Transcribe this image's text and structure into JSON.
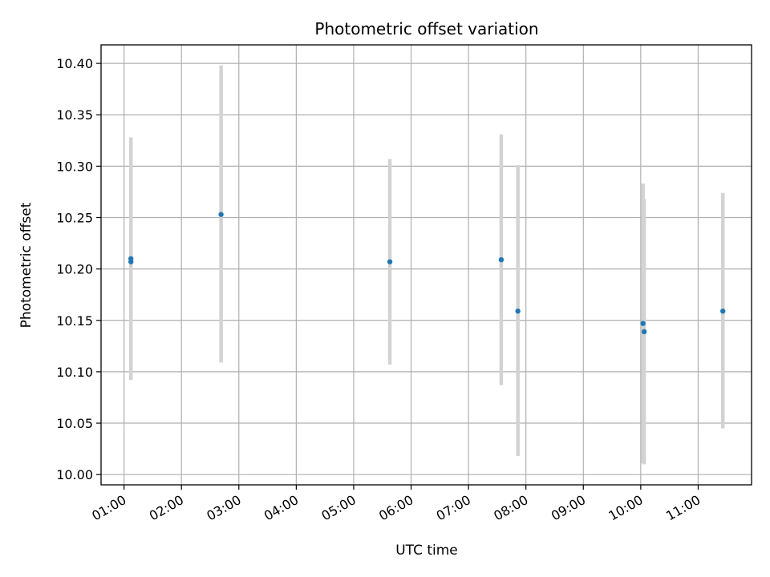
{
  "chart_data": {
    "type": "scatter",
    "title": "Photometric offset variation",
    "xlabel": "UTC time",
    "ylabel": "Photometric offset",
    "x_tick_labels": [
      "01:00",
      "02:00",
      "03:00",
      "04:00",
      "05:00",
      "06:00",
      "07:00",
      "08:00",
      "09:00",
      "10:00",
      "11:00"
    ],
    "x_ticks_hours": [
      1,
      2,
      3,
      4,
      5,
      6,
      7,
      8,
      9,
      10,
      11
    ],
    "xlim_hours": [
      0.6,
      11.93
    ],
    "y_ticks": [
      10.0,
      10.05,
      10.1,
      10.15,
      10.2,
      10.25,
      10.3,
      10.35,
      10.4
    ],
    "y_tick_labels": [
      "10.00",
      "10.05",
      "10.10",
      "10.15",
      "10.20",
      "10.25",
      "10.30",
      "10.35",
      "10.40"
    ],
    "ylim": [
      9.99,
      10.418
    ],
    "grid": true,
    "colors": {
      "points": "#1f77b4",
      "errorbars": "#d3d3d3",
      "grid": "#b0b0b0"
    },
    "points": [
      {
        "time": "01:07",
        "x_hours": 1.12,
        "y": 10.21,
        "err_low": 10.092,
        "err_high": 10.328
      },
      {
        "time": "01:07",
        "x_hours": 1.12,
        "y": 10.207,
        "err_low": 10.092,
        "err_high": 10.328
      },
      {
        "time": "02:41",
        "x_hours": 2.69,
        "y": 10.253,
        "err_low": 10.109,
        "err_high": 10.398
      },
      {
        "time": "05:38",
        "x_hours": 5.63,
        "y": 10.207,
        "err_low": 10.107,
        "err_high": 10.307
      },
      {
        "time": "07:34",
        "x_hours": 7.57,
        "y": 10.209,
        "err_low": 10.087,
        "err_high": 10.331
      },
      {
        "time": "07:52",
        "x_hours": 7.86,
        "y": 10.159,
        "err_low": 10.018,
        "err_high": 10.301
      },
      {
        "time": "10:03",
        "x_hours": 10.04,
        "y": 10.147,
        "err_low": 10.011,
        "err_high": 10.283
      },
      {
        "time": "10:04",
        "x_hours": 10.06,
        "y": 10.139,
        "err_low": 10.01,
        "err_high": 10.268
      },
      {
        "time": "11:26",
        "x_hours": 11.43,
        "y": 10.159,
        "err_low": 10.045,
        "err_high": 10.274
      }
    ]
  }
}
